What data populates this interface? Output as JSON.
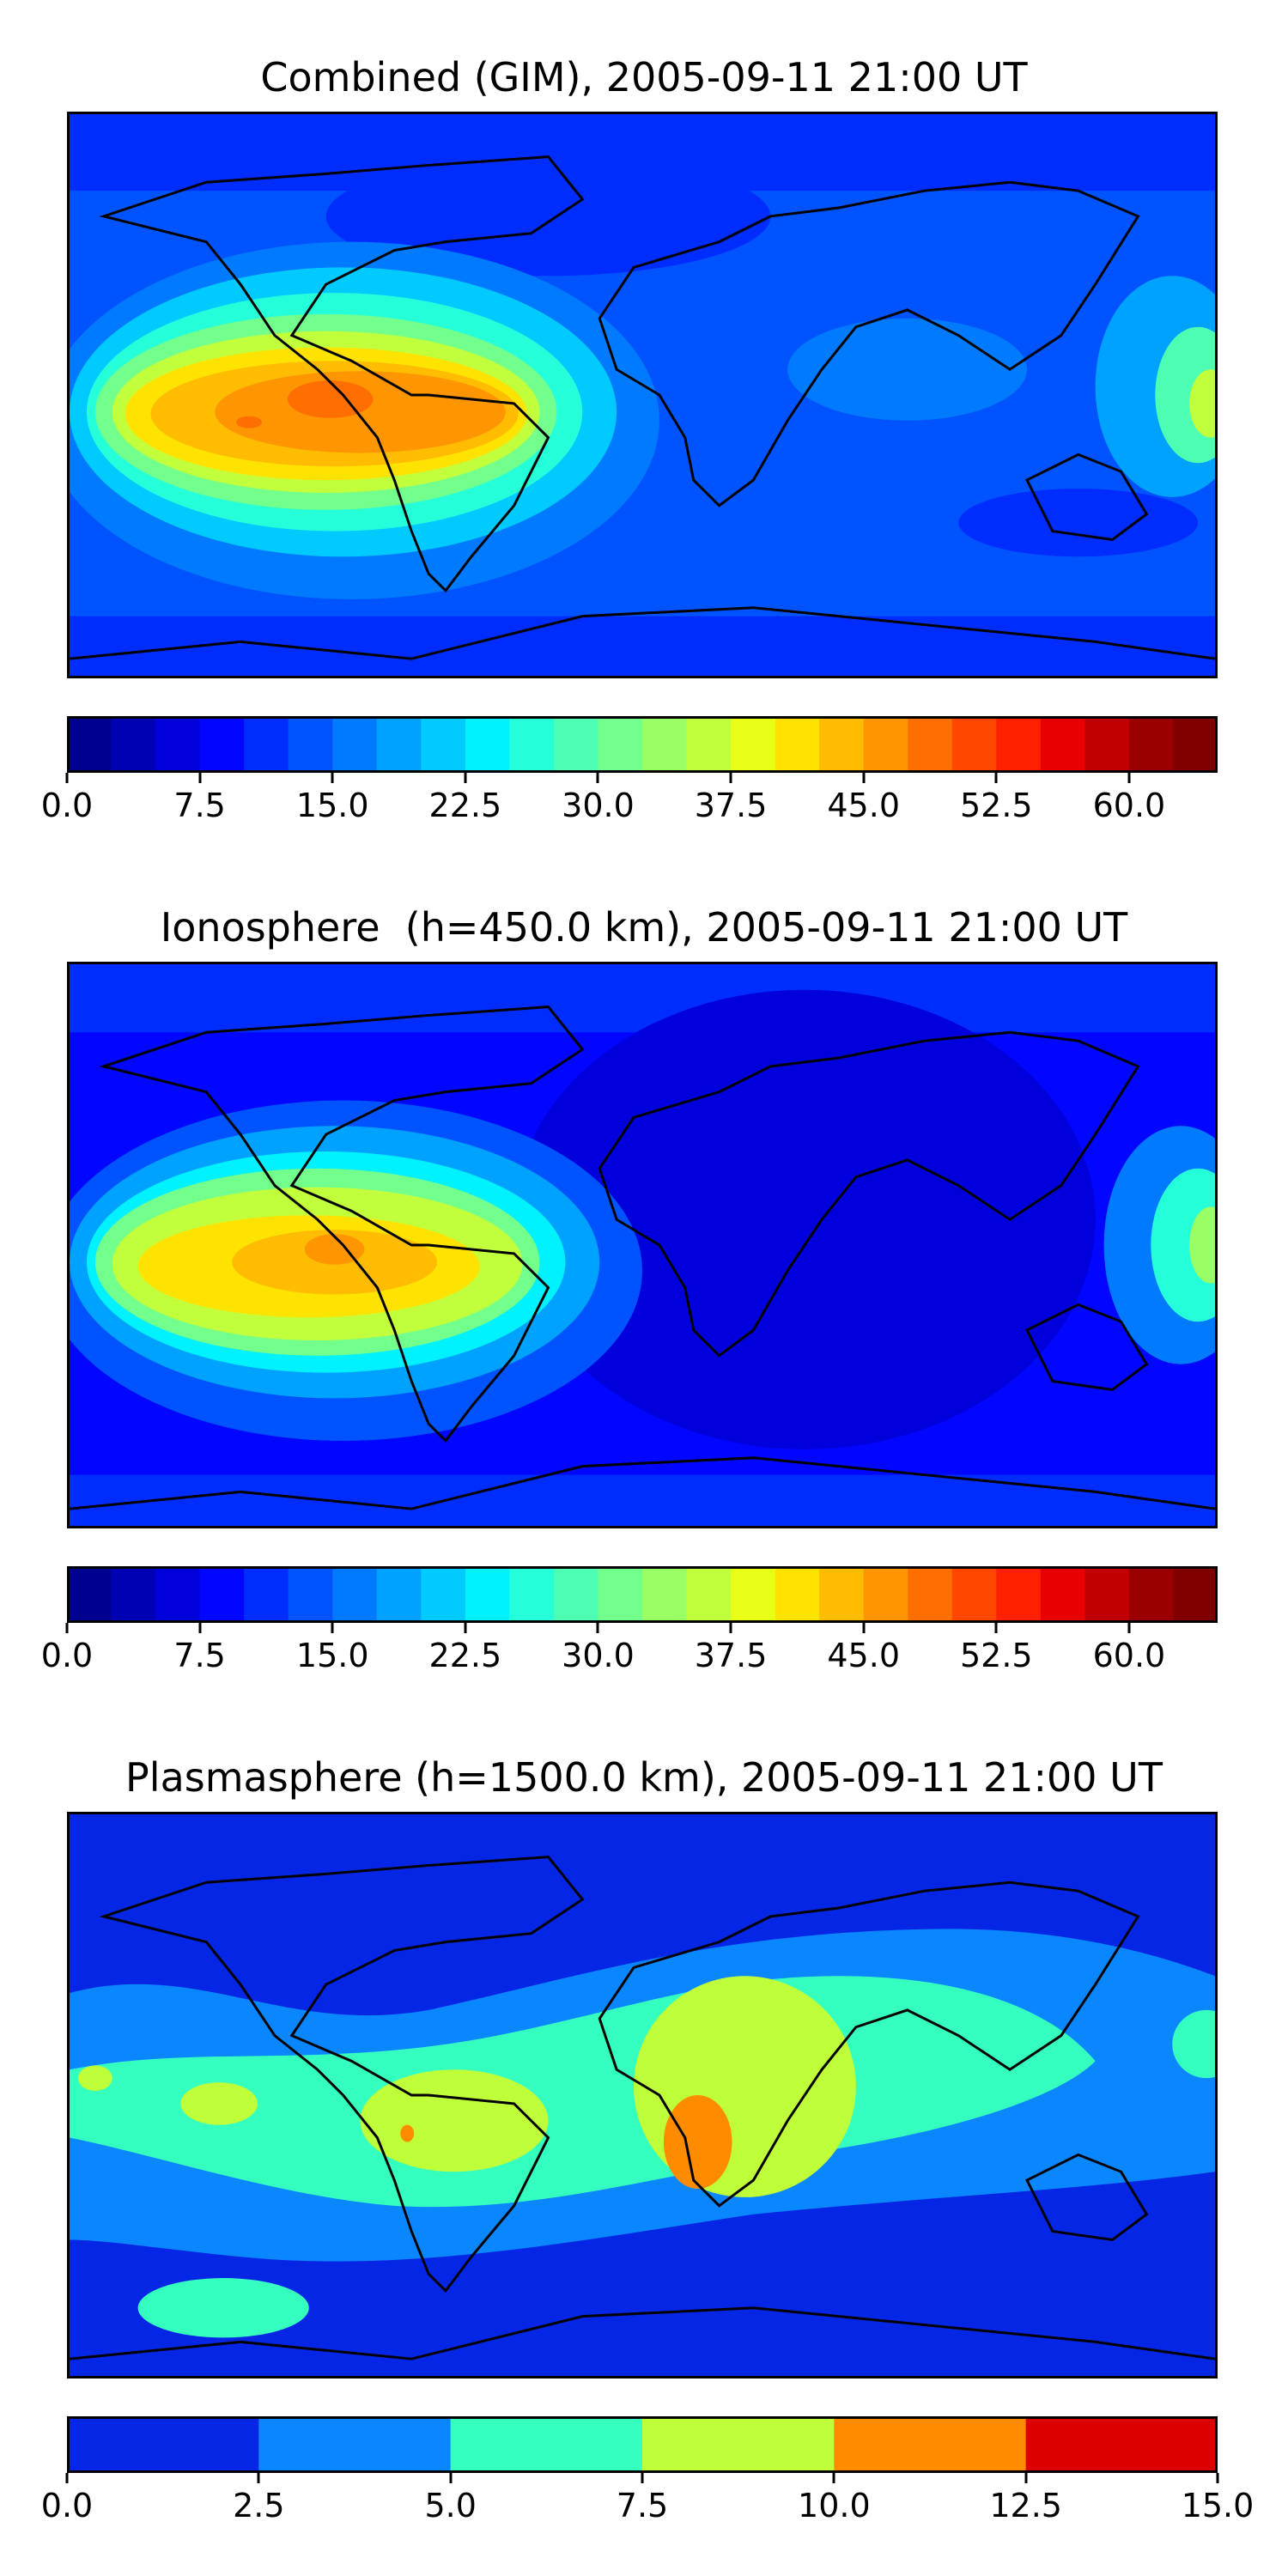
{
  "panels": [
    {
      "title": "Combined (GIM), 2005-09-11 21:00 UT",
      "colorbar": {
        "min": 0,
        "max": 65,
        "step": 2.5,
        "tick_labels": [
          "0.0",
          "7.5",
          "15.0",
          "22.5",
          "30.0",
          "37.5",
          "45.0",
          "52.5",
          "60.0"
        ],
        "tick_values": [
          0,
          7.5,
          15,
          22.5,
          30,
          37.5,
          45,
          52.5,
          60
        ],
        "colors": [
          "#00008f",
          "#0000b4",
          "#0000dc",
          "#0006ff",
          "#002dff",
          "#0054ff",
          "#007bff",
          "#00a2ff",
          "#00caff",
          "#00f1ff",
          "#25ffd9",
          "#4cffb2",
          "#73ff8b",
          "#9aff64",
          "#c1ff3d",
          "#e8ff16",
          "#ffe300",
          "#ffbc00",
          "#ff9500",
          "#ff6e00",
          "#ff4700",
          "#ff2000",
          "#e80000",
          "#c10000",
          "#9a0000",
          "#800000"
        ]
      }
    },
    {
      "title": "Ionosphere  (h=450.0 km), 2005-09-11 21:00 UT",
      "colorbar": {
        "min": 0,
        "max": 65,
        "step": 2.5,
        "tick_labels": [
          "0.0",
          "7.5",
          "15.0",
          "22.5",
          "30.0",
          "37.5",
          "45.0",
          "52.5",
          "60.0"
        ],
        "tick_values": [
          0,
          7.5,
          15,
          22.5,
          30,
          37.5,
          45,
          52.5,
          60
        ],
        "colors": [
          "#00008f",
          "#0000b4",
          "#0000dc",
          "#0006ff",
          "#002dff",
          "#0054ff",
          "#007bff",
          "#00a2ff",
          "#00caff",
          "#00f1ff",
          "#25ffd9",
          "#4cffb2",
          "#73ff8b",
          "#9aff64",
          "#c1ff3d",
          "#e8ff16",
          "#ffe300",
          "#ffbc00",
          "#ff9500",
          "#ff6e00",
          "#ff4700",
          "#ff2000",
          "#e80000",
          "#c10000",
          "#9a0000",
          "#800000"
        ]
      }
    },
    {
      "title": "Plasmasphere (h=1500.0 km), 2005-09-11 21:00 UT",
      "colorbar": {
        "min": 0,
        "max": 15,
        "step": 2.5,
        "tick_labels": [
          "0.0",
          "2.5",
          "5.0",
          "7.5",
          "10.0",
          "12.5",
          "15.0"
        ],
        "tick_values": [
          0,
          2.5,
          5,
          7.5,
          10,
          12.5,
          15
        ],
        "colors": [
          "#0626e6",
          "#0a86ff",
          "#35ffbe",
          "#bfff3a",
          "#ff8c00",
          "#dc0000"
        ]
      }
    }
  ],
  "map_colors": {
    "coast": "#000000"
  }
}
